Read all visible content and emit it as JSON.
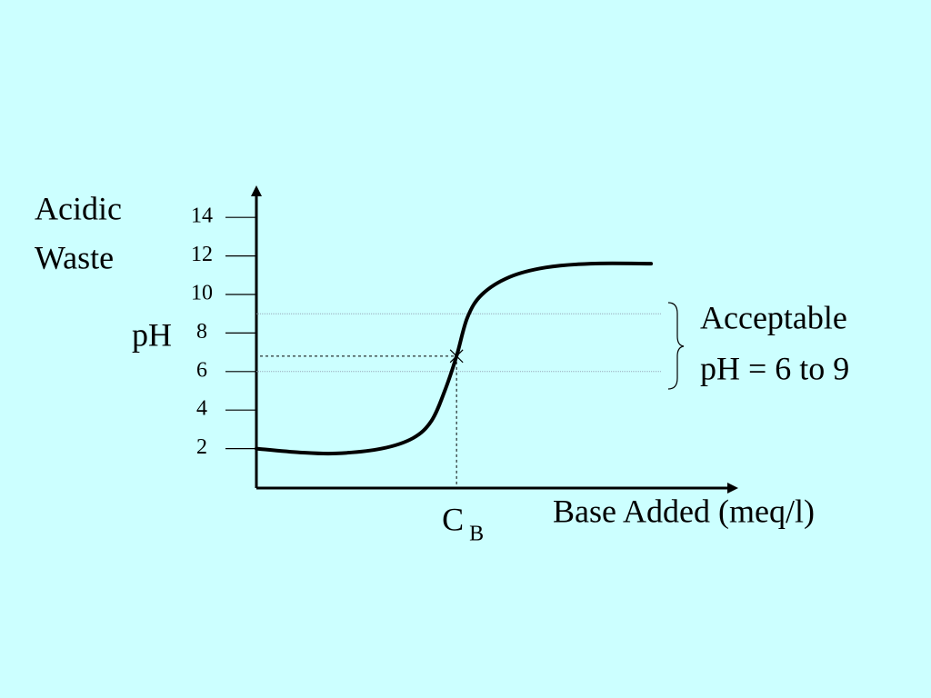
{
  "chart_data": {
    "type": "line",
    "y_top_label": "Acidic",
    "y_top_label_2": "Waste",
    "y_label": "pH",
    "x_label": "Base Added (meq/l)",
    "range_label": "Acceptable",
    "range_label_2": "pH = 6 to 9",
    "acceptable_range": [
      6,
      9
    ],
    "marker": {
      "x": 4.25,
      "y": 6.8,
      "label": "C",
      "label_sub": "B"
    },
    "x": [
      0,
      0.93,
      1.7,
      2.66,
      3.33,
      3.72,
      4.0,
      4.25,
      4.48,
      4.79,
      5.37,
      6.14,
      7.1,
      8.38
    ],
    "series": [
      {
        "color": "#000000",
        "values": [
          2.0,
          1.8,
          1.75,
          2.0,
          2.55,
          3.45,
          5.0,
          6.8,
          8.8,
          10.0,
          10.9,
          11.4,
          11.6,
          11.6
        ]
      }
    ],
    "xlim": [
      0,
      10
    ],
    "ylim": [
      0,
      15
    ],
    "yticks": [
      2,
      4,
      6,
      8,
      10,
      12,
      14
    ]
  }
}
